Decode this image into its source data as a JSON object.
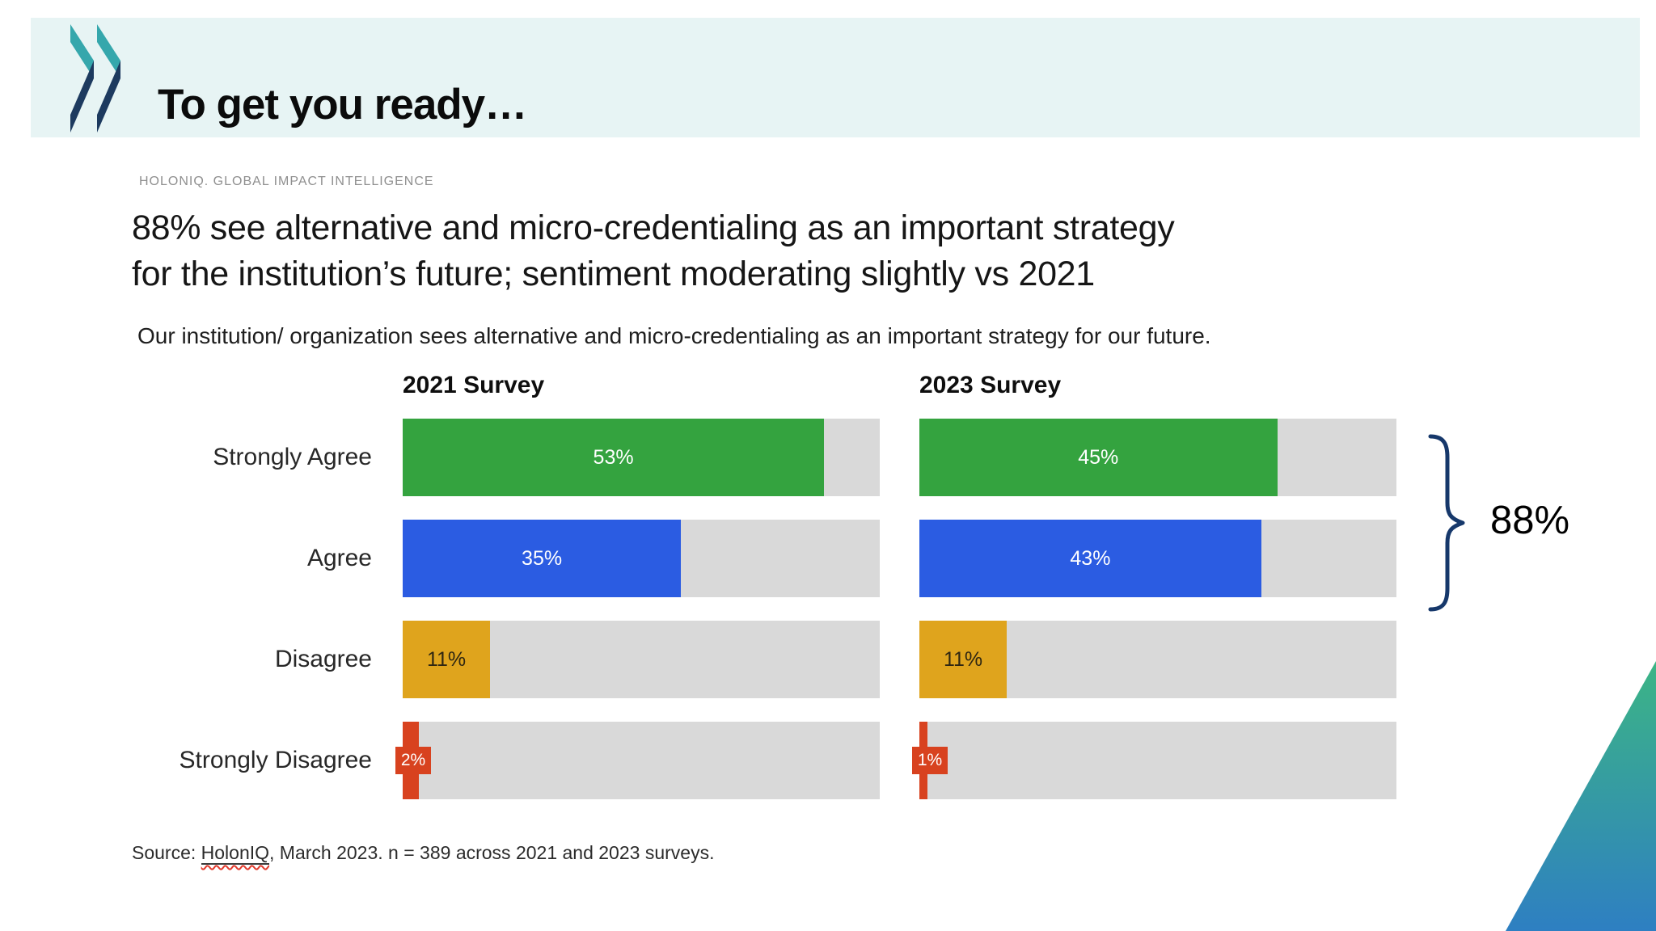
{
  "slide": {
    "header": {
      "title": "To get you ready…"
    },
    "brand_line": "HOLONIQ. GLOBAL IMPACT INTELLIGENCE",
    "title_line1": "88% see alternative and micro-credentialing as an important strategy",
    "title_line2": "for the institution’s future; sentiment moderating slightly vs 2021",
    "subtitle": "Our institution/ organization sees alternative and micro-credentialing as an important strategy for our future.",
    "source": {
      "prefix": "Source: ",
      "org": "HolonIQ",
      "suffix": ", March 2023. n = 389 across 2021 and 2023 surveys."
    }
  },
  "chart_data": {
    "type": "bar",
    "orientation": "horizontal",
    "title": "88% see alternative and micro-credentialing as an important strategy for the institution’s future; sentiment moderating slightly vs 2021",
    "subtitle": "Our institution/ organization sees alternative and micro-credentialing as an important strategy for our future.",
    "categories": [
      "Strongly Agree",
      "Agree",
      "Disagree",
      "Strongly Disagree"
    ],
    "series": [
      {
        "name": "2021 Survey",
        "values": [
          53,
          35,
          11,
          2
        ]
      },
      {
        "name": "2023 Survey",
        "values": [
          45,
          43,
          11,
          1
        ]
      }
    ],
    "value_suffix": "%",
    "axis_max": 60,
    "grid": false,
    "legend": "none",
    "annotation": {
      "label": "88%",
      "spans_categories": [
        "Strongly Agree",
        "Agree"
      ],
      "applies_to": "2023 Survey"
    },
    "category_colors": [
      "#34a33f",
      "#2b5ce2",
      "#dfa41d",
      "#d8421f"
    ],
    "value_label_colors": [
      "#ffffff",
      "#ffffff",
      "#2e2612",
      "#ffffff"
    ],
    "track_color": "#d9d9d9"
  },
  "theme": {
    "header_band_bg": "#e7f4f4",
    "logo_teal": "#35a7ac",
    "logo_navy": "#1d3a5f",
    "brace_color": "#16386b",
    "corner_gradient_top": "#3cb585",
    "corner_gradient_bottom": "#2e7fc2",
    "spellcheck_red": "#e23b2e"
  }
}
